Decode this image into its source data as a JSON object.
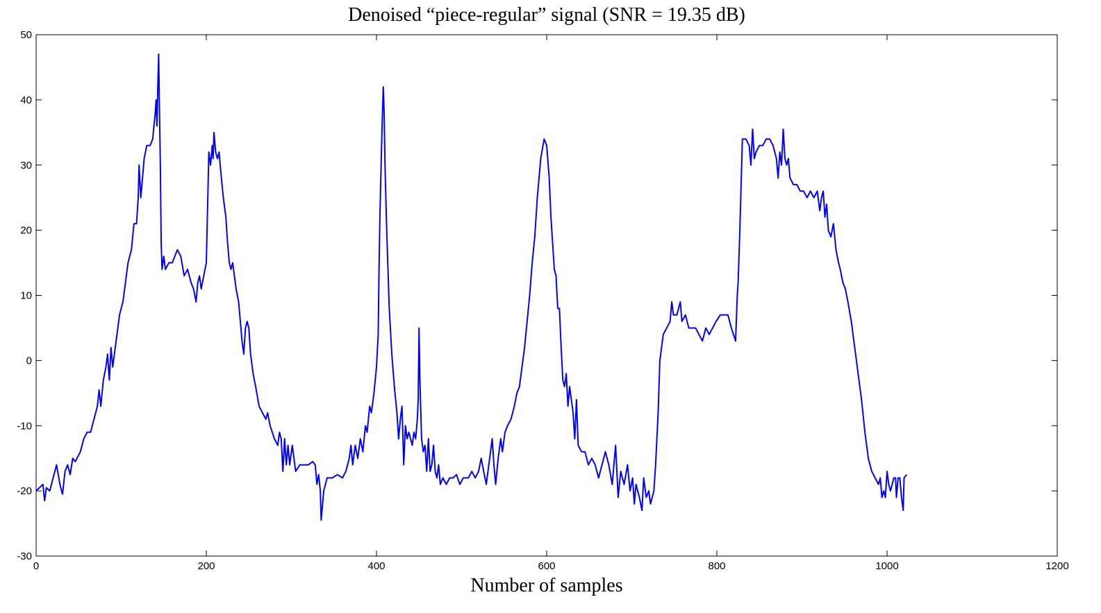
{
  "chart_data": {
    "type": "line",
    "title": "Denoised “piece-regular” signal (SNR = 19.35 dB)",
    "x_label": "Number of samples",
    "xlim": [
      0,
      1200
    ],
    "xticks": [
      0,
      200,
      400,
      600,
      800,
      1000,
      1200
    ],
    "ylim": [
      -30,
      50
    ],
    "yticks": [
      -30,
      -20,
      -10,
      0,
      10,
      20,
      30,
      40,
      50
    ],
    "grid": false,
    "x": [
      0,
      4,
      8,
      10,
      12,
      16,
      20,
      24,
      28,
      31,
      34,
      37,
      40,
      43,
      46,
      52,
      56,
      60,
      64,
      68,
      72,
      74,
      76,
      79,
      82,
      84,
      86,
      88,
      90,
      94,
      98,
      102,
      105,
      108,
      110,
      112,
      115,
      118,
      120,
      121,
      123,
      125,
      127,
      130,
      134,
      137,
      140,
      141,
      142,
      143,
      144,
      145,
      146,
      147,
      148,
      150,
      152,
      156,
      160,
      166,
      170,
      174,
      178,
      182,
      185,
      188,
      190,
      192,
      194,
      200,
      203,
      205,
      207,
      208,
      209,
      211,
      213,
      215,
      217,
      220,
      223,
      225,
      227,
      229,
      231,
      233,
      235,
      238,
      240,
      242,
      244,
      246,
      248,
      250,
      252,
      255,
      258,
      262,
      266,
      270,
      272,
      275,
      280,
      284,
      286,
      288,
      290,
      292,
      294,
      296,
      298,
      301,
      305,
      310,
      315,
      320,
      325,
      328,
      330,
      332,
      334,
      335,
      338,
      342,
      348,
      354,
      360,
      364,
      368,
      370,
      372,
      375,
      378,
      381,
      384,
      387,
      389,
      392,
      394,
      397,
      400,
      402,
      403,
      404,
      406,
      407,
      408,
      409,
      410,
      412,
      415,
      418,
      421,
      424,
      426,
      428,
      430,
      432,
      434,
      436,
      438,
      440,
      442,
      444,
      446,
      448,
      449,
      450,
      451,
      453,
      455,
      457,
      459,
      461,
      463,
      465,
      467,
      469,
      471,
      473,
      475,
      478,
      482,
      486,
      490,
      494,
      498,
      502,
      508,
      512,
      516,
      520,
      523,
      526,
      529,
      532,
      534,
      536,
      538,
      540,
      543,
      546,
      548,
      551,
      554,
      558,
      562,
      565,
      568,
      571,
      574,
      577,
      580,
      583,
      586,
      589,
      593,
      597,
      600,
      603,
      605,
      607,
      609,
      611,
      613,
      615,
      617,
      619,
      621,
      623,
      625,
      627,
      629,
      631,
      633,
      635,
      637,
      641,
      645,
      649,
      653,
      657,
      661,
      665,
      669,
      673,
      677,
      681,
      684,
      687,
      691,
      695,
      698,
      701,
      703,
      705,
      709,
      712,
      714,
      717,
      720,
      722,
      726,
      728,
      731,
      733,
      735,
      737,
      741,
      745,
      747,
      749,
      753,
      757,
      759,
      763,
      767,
      771,
      775,
      779,
      783,
      787,
      791,
      795,
      799,
      804,
      809,
      813,
      817,
      822,
      824,
      825,
      827,
      830,
      834,
      838,
      840,
      842,
      844,
      846,
      850,
      854,
      858,
      862,
      866,
      870,
      872,
      874,
      876,
      878,
      880,
      882,
      884,
      886,
      890,
      894,
      898,
      902,
      906,
      910,
      914,
      918,
      921,
      923,
      925,
      927,
      929,
      931,
      934,
      937,
      940,
      943,
      945,
      948,
      951,
      954,
      958,
      962,
      966,
      970,
      974,
      978,
      982,
      986,
      990,
      992,
      994,
      996,
      998,
      1000,
      1002,
      1004,
      1006,
      1008,
      1010,
      1011,
      1013,
      1015,
      1017,
      1019,
      1020,
      1023
    ],
    "series": [
      {
        "color": "#0000ff",
        "values": [
          -20,
          -19.5,
          -19,
          -21.5,
          -19.5,
          -20,
          -18,
          -16,
          -19,
          -20.5,
          -17,
          -16,
          -17.5,
          -15,
          -15.5,
          -14,
          -12,
          -11,
          -11,
          -9,
          -7,
          -4.5,
          -7,
          -3,
          -1,
          1,
          -3,
          2,
          -1,
          3,
          7,
          9,
          12,
          15,
          16,
          17,
          21,
          21,
          25,
          30,
          25,
          28,
          31,
          33,
          33,
          34,
          38,
          40,
          36,
          42,
          47,
          38,
          30,
          18,
          14,
          16,
          14,
          15,
          15,
          17,
          16,
          13,
          14,
          12,
          11,
          9,
          12,
          13,
          11,
          15,
          32,
          30,
          33,
          31,
          35,
          32,
          31,
          32,
          29,
          25,
          22,
          18,
          15,
          14,
          15,
          13,
          11,
          9,
          6,
          3,
          1,
          5,
          6,
          5,
          1,
          -2,
          -4,
          -7,
          -8,
          -9,
          -8,
          -10,
          -12,
          -13,
          -11,
          -12,
          -17,
          -12,
          -16,
          -13,
          -16,
          -13,
          -17,
          -16,
          -16,
          -16,
          -15.5,
          -16,
          -19,
          -17.5,
          -20,
          -24.5,
          -20,
          -18,
          -18,
          -17.5,
          -18,
          -17,
          -15,
          -13,
          -16,
          -13,
          -15,
          -12,
          -14,
          -10,
          -11,
          -7,
          -8,
          -5,
          -1,
          4,
          14,
          22,
          33,
          38,
          42,
          38,
          30,
          20,
          8,
          1,
          -4,
          -8,
          -12,
          -9,
          -7,
          -16,
          -10,
          -12,
          -11,
          -12,
          -13,
          -11,
          -12,
          -9,
          -6,
          5,
          -3,
          -12,
          -14,
          -13,
          -17,
          -12,
          -17,
          -16,
          -13,
          -17,
          -18,
          -16,
          -19,
          -18,
          -19,
          -18,
          -18,
          -17.5,
          -19,
          -18,
          -18,
          -17,
          -18,
          -17,
          -15,
          -17,
          -19,
          -16,
          -14,
          -12,
          -16,
          -19,
          -15,
          -12,
          -14,
          -11,
          -10,
          -9,
          -7,
          -5,
          -4,
          -1,
          2,
          6,
          10,
          15,
          19,
          25,
          31,
          34,
          33,
          28,
          22,
          18,
          14,
          13,
          8,
          8,
          2,
          -3,
          -4,
          -2,
          -7,
          -4,
          -6,
          -8,
          -12,
          -6,
          -13,
          -14,
          -14,
          -16,
          -15,
          -16,
          -18,
          -16,
          -14,
          -16,
          -19,
          -13,
          -21,
          -17,
          -19,
          -16,
          -20,
          -18,
          -22,
          -19,
          -21,
          -23,
          -18,
          -21,
          -20,
          -22,
          -20,
          -16,
          -8,
          0,
          2,
          4,
          5,
          6,
          9,
          7,
          7,
          9,
          6,
          7,
          5,
          5,
          5,
          4,
          3,
          5,
          4,
          5,
          6,
          7,
          7,
          7,
          5,
          3,
          10,
          12,
          20,
          34,
          34,
          33,
          30,
          35.5,
          31,
          32,
          33,
          33,
          34,
          34,
          33,
          31,
          28,
          32,
          30,
          35.5,
          31,
          30,
          31,
          28,
          27,
          27,
          26,
          26,
          25,
          26,
          25,
          26,
          23,
          25,
          26,
          22,
          24,
          20,
          19,
          21,
          17,
          15,
          14,
          12,
          11,
          9,
          6,
          2,
          -2,
          -6,
          -11,
          -15,
          -17,
          -18,
          -19,
          -18,
          -21,
          -20,
          -21,
          -17,
          -19,
          -20,
          -19,
          -18,
          -18,
          -21,
          -18,
          -18,
          -21,
          -23,
          -18,
          -17.5
        ]
      }
    ]
  }
}
